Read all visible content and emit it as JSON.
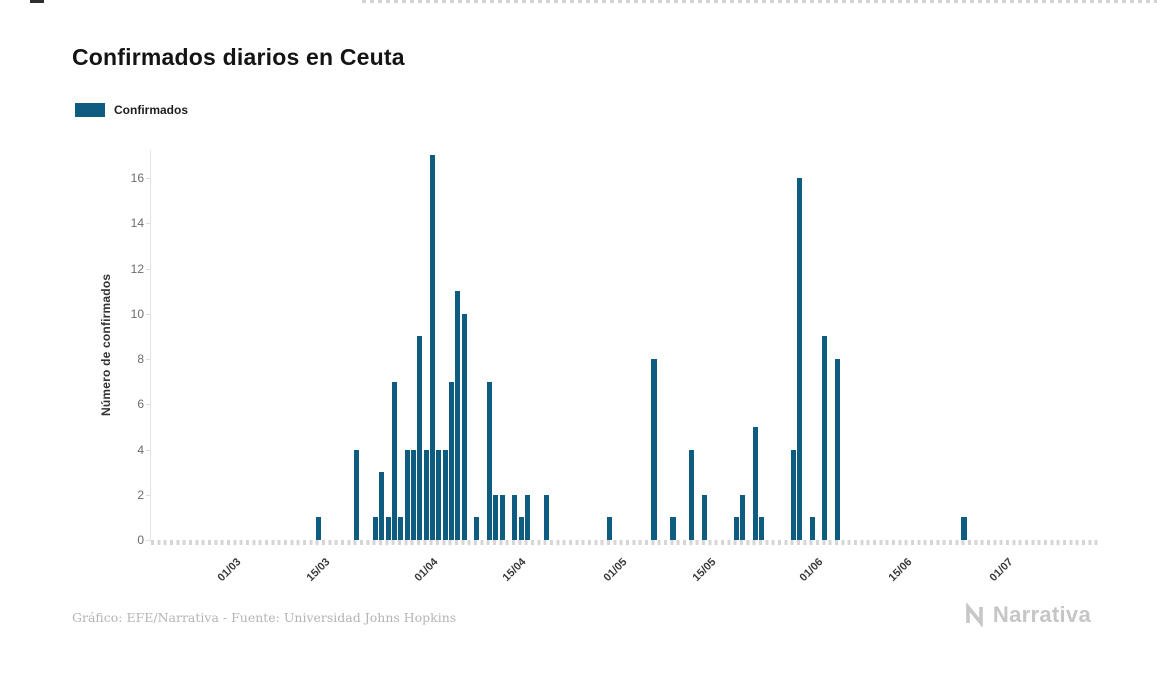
{
  "page": {
    "title": "Confirmados diarios en Ceuta",
    "footer_credit": "Gráfico: EFE/Narrativa - Fuente: Universidad Johns Hopkins",
    "brand": "Narrativa"
  },
  "legend": {
    "label": "Confirmados",
    "color": "#0e5d80"
  },
  "chart_data": {
    "type": "bar",
    "title": "Confirmados diarios en Ceuta",
    "series_name": "Confirmados",
    "xlabel": "",
    "ylabel": "Número de confirmados",
    "bar_color": "#0e5d80",
    "ylim": [
      0,
      17
    ],
    "y_ticks": [
      0,
      2,
      4,
      6,
      8,
      10,
      12,
      14,
      16
    ],
    "grid": "off",
    "legend_position": "top-left",
    "x_domain_start": "2020-02-17",
    "x_domain_end": "2020-07-16",
    "zero_days_omitted": true,
    "x_ticks": [
      {
        "label": "01/03",
        "date": "2020-03-01"
      },
      {
        "label": "15/03",
        "date": "2020-03-15"
      },
      {
        "label": "01/04",
        "date": "2020-04-01"
      },
      {
        "label": "15/04",
        "date": "2020-04-15"
      },
      {
        "label": "01/05",
        "date": "2020-05-01"
      },
      {
        "label": "15/05",
        "date": "2020-05-15"
      },
      {
        "label": "01/06",
        "date": "2020-06-01"
      },
      {
        "label": "15/06",
        "date": "2020-06-15"
      },
      {
        "label": "01/07",
        "date": "2020-07-01"
      }
    ],
    "points": [
      {
        "date": "2020-03-14",
        "value": 1
      },
      {
        "date": "2020-03-20",
        "value": 4
      },
      {
        "date": "2020-03-23",
        "value": 1
      },
      {
        "date": "2020-03-24",
        "value": 3
      },
      {
        "date": "2020-03-25",
        "value": 1
      },
      {
        "date": "2020-03-26",
        "value": 7
      },
      {
        "date": "2020-03-27",
        "value": 1
      },
      {
        "date": "2020-03-28",
        "value": 4
      },
      {
        "date": "2020-03-29",
        "value": 4
      },
      {
        "date": "2020-03-30",
        "value": 9
      },
      {
        "date": "2020-03-31",
        "value": 4
      },
      {
        "date": "2020-04-01",
        "value": 17
      },
      {
        "date": "2020-04-02",
        "value": 4
      },
      {
        "date": "2020-04-03",
        "value": 4
      },
      {
        "date": "2020-04-04",
        "value": 7
      },
      {
        "date": "2020-04-05",
        "value": 11
      },
      {
        "date": "2020-04-06",
        "value": 10
      },
      {
        "date": "2020-04-08",
        "value": 1
      },
      {
        "date": "2020-04-10",
        "value": 7
      },
      {
        "date": "2020-04-11",
        "value": 2
      },
      {
        "date": "2020-04-12",
        "value": 2
      },
      {
        "date": "2020-04-14",
        "value": 2
      },
      {
        "date": "2020-04-15",
        "value": 1
      },
      {
        "date": "2020-04-16",
        "value": 2
      },
      {
        "date": "2020-04-19",
        "value": 2
      },
      {
        "date": "2020-04-29",
        "value": 1
      },
      {
        "date": "2020-05-06",
        "value": 8
      },
      {
        "date": "2020-05-09",
        "value": 1
      },
      {
        "date": "2020-05-12",
        "value": 4
      },
      {
        "date": "2020-05-14",
        "value": 2
      },
      {
        "date": "2020-05-19",
        "value": 1
      },
      {
        "date": "2020-05-20",
        "value": 2
      },
      {
        "date": "2020-05-22",
        "value": 5
      },
      {
        "date": "2020-05-23",
        "value": 1
      },
      {
        "date": "2020-05-28",
        "value": 4
      },
      {
        "date": "2020-05-29",
        "value": 16
      },
      {
        "date": "2020-05-31",
        "value": 1
      },
      {
        "date": "2020-06-02",
        "value": 9
      },
      {
        "date": "2020-06-04",
        "value": 8
      },
      {
        "date": "2020-06-24",
        "value": 1
      }
    ]
  }
}
